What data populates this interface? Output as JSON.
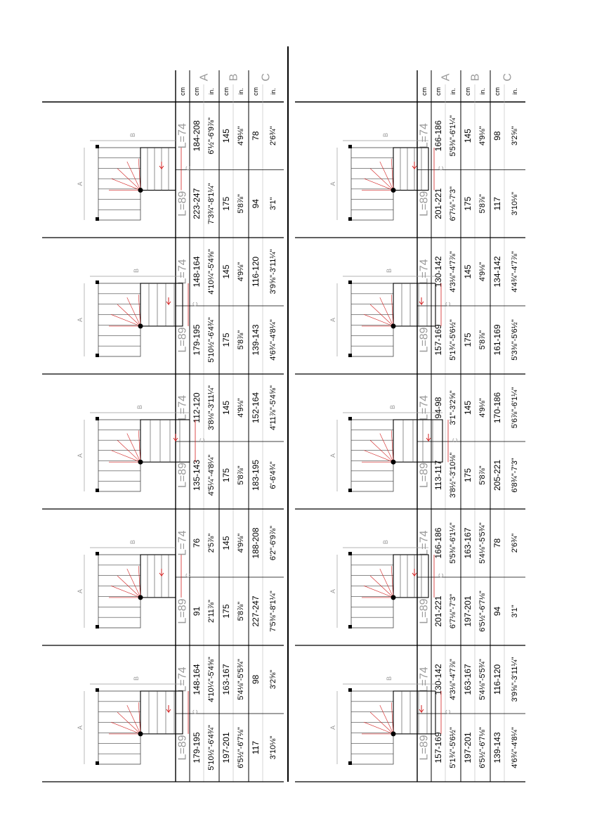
{
  "unit_header": {
    "cm": "cm",
    "in": "in.",
    "A": "A",
    "B": "B",
    "C": "C"
  },
  "l89": "L=89",
  "l74": "L=74",
  "plan_letters": {
    "A": "A",
    "B": "B",
    "C": "C",
    "L": "L"
  },
  "colors": {
    "line": "#000000",
    "grey": "#9a9a9a",
    "red": "#d21f1f",
    "step": "#444444"
  },
  "left_table": [
    {
      "l": {
        "cm": "223-247",
        "a": "7'3¾\"-8'1¼\"",
        "bcm": "175",
        "bin": "5'8⅞\"",
        "ccm": "94",
        "cin": "3'1\""
      },
      "r": {
        "cm": "184-208",
        "a": "6'½\"-6'9⅞\"",
        "bcm": "145",
        "bin": "4'9⅛\"",
        "ccm": "78",
        "cin": "2'6¾\""
      },
      "plan": "plan-l-1"
    },
    {
      "l": {
        "cm": "179-195",
        "a": "5'10½\"-6'4¾\"",
        "bcm": "175",
        "bin": "5'8⅞\"",
        "ccm": "139-143",
        "cin": "4'6¾\"-4'8¼\""
      },
      "r": {
        "cm": "148-164",
        "a": "4'10¼\"-5'4⅝\"",
        "bcm": "145",
        "bin": "4'9⅛\"",
        "ccm": "116-120",
        "cin": "3'9⅝\"-3'11¼\""
      },
      "plan": "plan-l-2"
    },
    {
      "l": {
        "cm": "135-143",
        "a": "4'5¼\"-4'8¼\"",
        "bcm": "175",
        "bin": "5'8⅞\"",
        "ccm": "183-195",
        "cin": "6'-6'4¾\""
      },
      "r": {
        "cm": "112-120",
        "a": "3'8⅛\"-3'11¼\"",
        "bcm": "145",
        "bin": "4'9⅛\"",
        "ccm": "152-164",
        "cin": "4'11⅞\"-5'4⅝\""
      },
      "plan": "plan-l-3"
    },
    {
      "l": {
        "cm": "91",
        "a": "2'11⅞\"",
        "bcm": "175",
        "bin": "5'8⅞\"",
        "ccm": "227-247",
        "cin": "7'5⅜\"-8'1¼\""
      },
      "r": {
        "cm": "76",
        "a": "2'5⅞\"",
        "bcm": "145",
        "bin": "4'9⅛\"",
        "ccm": "188-208",
        "cin": "6'2\"-6'9⅞\""
      },
      "plan": "plan-l-4"
    },
    {
      "l": {
        "cm": "179-195",
        "a": "5'10½\"-6'4¾\"",
        "bcm": "197-201",
        "bin": "6'5½\"-6'7⅛\"",
        "ccm": "117",
        "cin": "3'10⅛\""
      },
      "r": {
        "cm": "148-164",
        "a": "4'10¼\"-5'4⅝\"",
        "bcm": "163-167",
        "bin": "5'4⅛\"-5'5¾\"",
        "ccm": "98",
        "cin": "3'2⅝\""
      },
      "plan": "plan-l-5"
    }
  ],
  "right_table": [
    {
      "l": {
        "cm": "201-221",
        "a": "6'7⅛\"-7'3\"",
        "bcm": "175",
        "bin": "5'8⅞\"",
        "ccm": "117",
        "cin": "3'10⅛\""
      },
      "r": {
        "cm": "166-186",
        "a": "5'5⅜\"-6'1¼\"",
        "bcm": "145",
        "bin": "4'9⅛\"",
        "ccm": "98",
        "cin": "3'2⅝\""
      },
      "plan": "plan-r-1"
    },
    {
      "l": {
        "cm": "157-169",
        "a": "5'1¾\"-5'6½\"",
        "bcm": "175",
        "bin": "5'8⅞\"",
        "ccm": "161-169",
        "cin": "5'3⅜\"-5'6½\""
      },
      "r": {
        "cm": "130-142",
        "a": "4'3⅛\"-4'7⅞\"",
        "bcm": "145",
        "bin": "4'9⅛\"",
        "ccm": "134-142",
        "cin": "4'4¾\"-4'7⅞\""
      },
      "plan": "plan-r-2"
    },
    {
      "l": {
        "cm": "113-117",
        "a": "3'8½\"-3'10⅛\"",
        "bcm": "175",
        "bin": "5'8⅞\"",
        "ccm": "205-221",
        "cin": "6'8¾\"-7'3\""
      },
      "r": {
        "cm": "94-98",
        "a": "3'1\"-3'2⅝\"",
        "bcm": "145",
        "bin": "4'9⅛\"",
        "ccm": "170-186",
        "cin": "5'6⅞\"-6'1¼\""
      },
      "plan": "plan-r-3"
    },
    {
      "l": {
        "cm": "201-221",
        "a": "6'7⅛\"-7'3\"",
        "bcm": "197-201",
        "bin": "6'5½\"-6'7⅛\"",
        "ccm": "94",
        "cin": "3'1\""
      },
      "r": {
        "cm": "166-186",
        "a": "5'5⅜\"-6'1¼\"",
        "bcm": "163-167",
        "bin": "5'4⅛\"-5'5¾\"",
        "ccm": "78",
        "cin": "2'6¾\""
      },
      "plan": "plan-r-4"
    },
    {
      "l": {
        "cm": "157-169",
        "a": "5'1¾\"-5'6½\"",
        "bcm": "197-201",
        "bin": "6'5½\"-6'7⅛\"",
        "ccm": "139-143",
        "cin": "4'6¾\"-4'8¼\""
      },
      "r": {
        "cm": "130-142",
        "a": "4'3⅛\"-4'7⅞\"",
        "bcm": "163-167",
        "bin": "5'4⅛\"-5'5¾\"",
        "ccm": "116-120",
        "cin": "3'9⅝\"-3'11¼\""
      },
      "plan": "plan-r-5"
    }
  ]
}
